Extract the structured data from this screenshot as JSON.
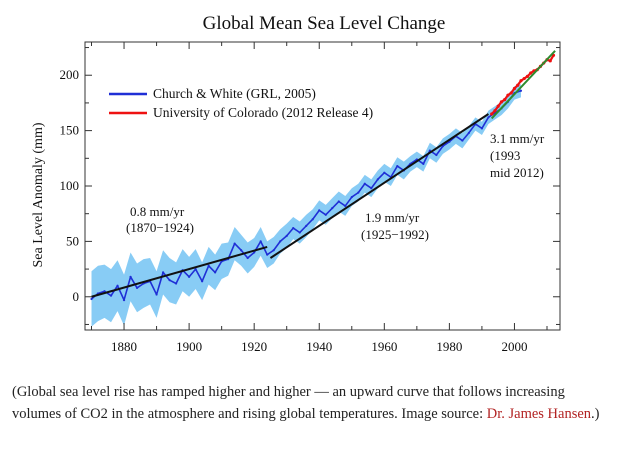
{
  "chart_data": {
    "type": "line",
    "title": "Global Mean Sea Level Change",
    "ylabel": "Sea Level Anomaly (mm)",
    "xlabel": "",
    "xlim": [
      1868,
      2014
    ],
    "ylim": [
      -30,
      230
    ],
    "x_ticks": [
      1880,
      1900,
      1920,
      1940,
      1960,
      1980,
      2000
    ],
    "y_ticks": [
      0,
      50,
      100,
      150,
      200
    ],
    "legend_position": "top-left",
    "series": [
      {
        "name": "Church & White (GRL, 2005)",
        "color": "#1f2fd6",
        "uncertainty_color": "#88ccf5",
        "x": [
          1870,
          1872,
          1874,
          1876,
          1878,
          1880,
          1882,
          1884,
          1886,
          1888,
          1890,
          1892,
          1894,
          1896,
          1898,
          1900,
          1902,
          1904,
          1906,
          1908,
          1910,
          1912,
          1914,
          1916,
          1918,
          1920,
          1922,
          1924,
          1926,
          1928,
          1930,
          1932,
          1934,
          1936,
          1938,
          1940,
          1942,
          1944,
          1946,
          1948,
          1950,
          1952,
          1954,
          1956,
          1958,
          1960,
          1962,
          1964,
          1966,
          1968,
          1970,
          1972,
          1974,
          1976,
          1978,
          1980,
          1982,
          1984,
          1986,
          1988,
          1990,
          1992,
          1994,
          1996,
          1998,
          2000,
          2002
        ],
        "y": [
          -2,
          3,
          5,
          1,
          10,
          -3,
          18,
          8,
          12,
          14,
          2,
          22,
          15,
          12,
          24,
          18,
          25,
          14,
          28,
          22,
          32,
          34,
          48,
          42,
          35,
          40,
          50,
          38,
          42,
          50,
          55,
          62,
          58,
          64,
          70,
          78,
          74,
          80,
          86,
          82,
          90,
          94,
          102,
          98,
          106,
          112,
          108,
          118,
          114,
          120,
          124,
          120,
          132,
          128,
          136,
          140,
          145,
          141,
          148,
          156,
          152,
          162,
          166,
          170,
          176,
          184,
          186
        ],
        "uncertainty": [
          25,
          25,
          24,
          24,
          23,
          23,
          22,
          22,
          22,
          21,
          21,
          20,
          20,
          19,
          19,
          18,
          18,
          17,
          17,
          16,
          16,
          15,
          15,
          14,
          14,
          13,
          13,
          12,
          12,
          11,
          11,
          10,
          10,
          10,
          9,
          9,
          9,
          9,
          9,
          9,
          8,
          8,
          8,
          8,
          8,
          8,
          8,
          8,
          8,
          7,
          7,
          7,
          7,
          7,
          7,
          7,
          7,
          7,
          6,
          6,
          6,
          6,
          6,
          6,
          6,
          6,
          6
        ]
      },
      {
        "name": "University of Colorado (2012 Release 4)",
        "color": "#ee1111",
        "x": [
          1993,
          1994,
          1995,
          1996,
          1997,
          1998,
          1999,
          2000,
          2001,
          2002,
          2003,
          2004,
          2005,
          2006,
          2007,
          2008,
          2009,
          2010,
          2011,
          2012
        ],
        "y": [
          165,
          168,
          172,
          176,
          178,
          182,
          184,
          188,
          191,
          195,
          197,
          199,
          202,
          204,
          205,
          208,
          211,
          214,
          213,
          218
        ]
      }
    ],
    "trend_lines": [
      {
        "label": "0.8 mm/yr",
        "period": "(1870−1924)",
        "x": [
          1870,
          1924
        ],
        "y": [
          0,
          45
        ]
      },
      {
        "label": "1.9 mm/yr",
        "period": "(1925−1992)",
        "x": [
          1925,
          1992
        ],
        "y": [
          35,
          165
        ]
      },
      {
        "label": "3.1 mm/yr",
        "period": "(1993",
        "period2": "mid 2012)",
        "color": "#2e8b2e",
        "x": [
          1993,
          2012.5
        ],
        "y": [
          161,
          222
        ]
      }
    ]
  },
  "caption": {
    "text": "(Global sea level rise has ramped higher and higher — an upward curve that follows increasing volumes of CO2 in the atmosphere and rising global temperatures. Image source: ",
    "link": "Dr. James Hansen",
    "end": ".)"
  }
}
